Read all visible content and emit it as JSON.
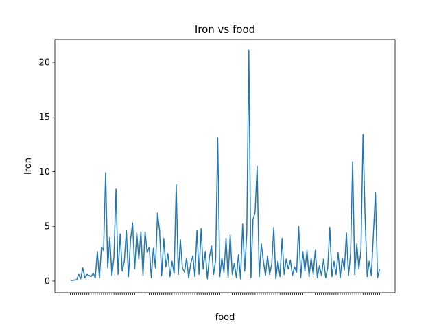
{
  "chart_data": {
    "type": "line",
    "title": "Iron vs food",
    "x_label": "food",
    "y_label": "Iron",
    "categories": [
      null,
      null,
      null,
      null,
      null,
      null,
      null,
      null,
      null,
      null,
      null,
      null,
      null,
      null,
      null,
      null,
      null,
      null,
      null,
      null,
      null,
      null,
      null,
      null,
      null,
      null,
      null,
      null,
      null,
      null,
      null,
      null,
      null,
      null,
      null,
      null,
      null,
      null,
      null,
      null,
      null,
      null,
      null,
      null,
      null,
      null,
      null,
      null,
      null,
      null,
      null,
      null,
      null,
      null,
      null,
      null,
      null,
      null,
      null,
      null,
      null,
      null,
      null,
      null,
      null,
      null,
      null,
      null,
      null,
      null,
      null,
      null,
      null,
      null,
      null,
      null,
      null,
      null,
      null,
      null,
      null,
      null,
      null,
      null,
      null,
      null,
      null,
      null,
      null,
      null,
      null,
      null,
      null,
      null,
      null,
      null,
      null,
      null,
      null,
      null,
      null,
      null,
      null,
      null,
      null,
      null,
      null,
      null,
      null,
      null,
      null,
      null,
      null,
      null,
      null,
      null,
      null,
      null,
      null,
      null,
      null,
      null,
      null,
      null,
      null,
      null,
      null,
      null,
      null,
      null,
      null,
      null,
      null,
      null,
      null,
      null,
      null,
      null,
      null,
      null,
      null,
      null,
      null,
      null,
      null,
      null,
      null,
      null,
      null,
      null
    ],
    "series": [
      {
        "name": "Iron",
        "color": "#1f77b4",
        "values": [
          0.1,
          0.05,
          0.1,
          0.1,
          0.6,
          0.2,
          1.2,
          0.3,
          0.6,
          0.5,
          0.4,
          0.7,
          0.3,
          2.7,
          0.3,
          3.1,
          2.8,
          9.9,
          1.2,
          4.0,
          0.5,
          2.2,
          8.4,
          0.6,
          4.3,
          0.9,
          1.8,
          4.6,
          0.4,
          3.8,
          5.3,
          1.1,
          4.4,
          2.0,
          4.5,
          0.5,
          4.5,
          2.6,
          3.1,
          0.3,
          3.0,
          1.2,
          6.2,
          4.6,
          0.5,
          3.9,
          1.3,
          2.5,
          0.4,
          1.8,
          0.7,
          8.8,
          0.6,
          3.8,
          1.2,
          0.8,
          2.1,
          0.3,
          1.6,
          2.3,
          0.4,
          4.6,
          0.6,
          4.8,
          1.1,
          2.7,
          0.2,
          2.2,
          3.2,
          0.6,
          1.9,
          13.1,
          0.4,
          2.1,
          0.8,
          3.9,
          0.3,
          4.2,
          0.6,
          1.6,
          0.3,
          2.4,
          0.2,
          5.2,
          0.9,
          4.4,
          21.1,
          0.3,
          5.6,
          6.3,
          10.5,
          0.4,
          3.4,
          1.8,
          0.5,
          2.3,
          0.6,
          1.5,
          4.9,
          0.2,
          1.8,
          0.4,
          3.9,
          0.6,
          2.0,
          1.1,
          1.9,
          0.5,
          1.3,
          0.8,
          5.0,
          0.3,
          2.7,
          0.9,
          2.8,
          0.4,
          2.1,
          0.6,
          2.8,
          0.3,
          1.4,
          0.5,
          2.0,
          0.3,
          1.2,
          4.9,
          0.4,
          1.8,
          0.6,
          2.6,
          0.3,
          2.1,
          1.0,
          4.4,
          0.5,
          2.5,
          10.9,
          0.6,
          3.4,
          1.1,
          2.8,
          13.4,
          5.9,
          0.4,
          1.8,
          0.5,
          4.3,
          8.1,
          0.3,
          1.1
        ]
      }
    ],
    "ylim": [
      -1.07,
      22.07
    ],
    "yticks": [
      0,
      5,
      10,
      15,
      20
    ]
  }
}
